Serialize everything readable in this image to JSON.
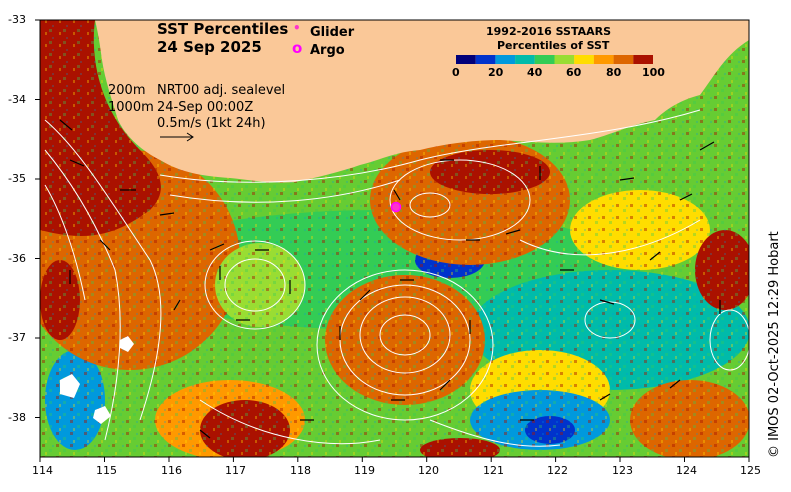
{
  "title": {
    "line1": "SST Percentiles",
    "line2": "24 Sep 2025"
  },
  "markers": {
    "glider": {
      "symbol": "•",
      "label": "Glider",
      "color": "#ff33cc"
    },
    "argo": {
      "symbol": "o",
      "label": "Argo",
      "color": "#ff00ff"
    }
  },
  "legend": {
    "title1": "1992-2016 SSTAARS",
    "title2": "Percentiles of SST",
    "tick_labels": [
      "0",
      "20",
      "40",
      "60",
      "80",
      "100"
    ],
    "colors": [
      "#00007a",
      "#0033cc",
      "#0099dd",
      "#00bbaa",
      "#33cc55",
      "#99dd33",
      "#ffdd00",
      "#ff9900",
      "#dd6600",
      "#aa1100"
    ]
  },
  "info": {
    "depth1": "200m",
    "depth2": "1000m",
    "product": "NRT00 adj. sealevel",
    "time": "24-Sep 00:00Z",
    "scale": "0.5m/s (1kt 24h)"
  },
  "axes": {
    "lon_labels": [
      "114",
      "115",
      "116",
      "117",
      "118",
      "119",
      "120",
      "121",
      "122",
      "123",
      "124",
      "125"
    ],
    "lat_labels": [
      "-33",
      "-34",
      "-35",
      "-36",
      "-37",
      "-38"
    ]
  },
  "credit": "© IMOS 02-Oct-2025 12:29 Hobart",
  "colors": {
    "land": "#fac898",
    "contour": "#ffffff",
    "arrow": "#000000"
  }
}
